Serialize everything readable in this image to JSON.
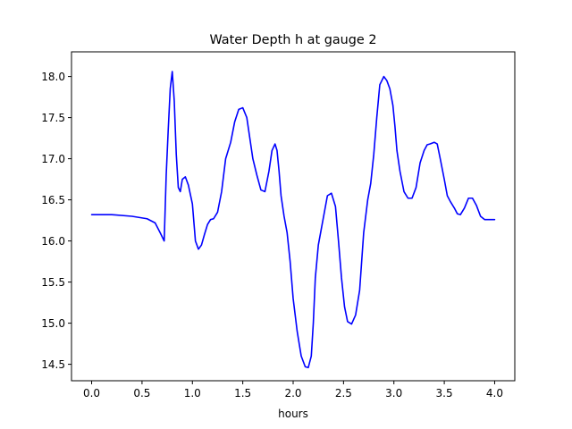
{
  "chart_data": {
    "type": "line",
    "title": "Water Depth h at gauge 2",
    "xlabel": "hours",
    "ylabel": "",
    "xlim": [
      -0.2,
      4.2
    ],
    "ylim": [
      14.3,
      18.3
    ],
    "xticks": [
      0.0,
      0.5,
      1.0,
      1.5,
      2.0,
      2.5,
      3.0,
      3.5,
      4.0
    ],
    "xtick_labels": [
      "0.0",
      "0.5",
      "1.0",
      "1.5",
      "2.0",
      "2.5",
      "3.0",
      "3.5",
      "4.0"
    ],
    "yticks": [
      14.5,
      15.0,
      15.5,
      16.0,
      16.5,
      17.0,
      17.5,
      18.0
    ],
    "ytick_labels": [
      "14.5",
      "15.0",
      "15.5",
      "16.0",
      "16.5",
      "17.0",
      "17.5",
      "18.0"
    ],
    "grid": false,
    "line_color": "#0000ff",
    "series": [
      {
        "x": [
          0.0,
          0.2,
          0.4,
          0.55,
          0.63,
          0.68,
          0.72,
          0.74,
          0.76,
          0.78,
          0.8,
          0.82,
          0.84,
          0.86,
          0.88,
          0.9,
          0.93,
          0.96,
          1.0,
          1.03,
          1.06,
          1.09,
          1.12,
          1.15,
          1.18,
          1.21,
          1.25,
          1.29,
          1.33,
          1.38,
          1.42,
          1.46,
          1.5,
          1.54,
          1.57,
          1.6,
          1.64,
          1.68,
          1.72,
          1.76,
          1.79,
          1.82,
          1.84,
          1.86,
          1.88,
          1.91,
          1.94,
          1.97,
          2.0,
          2.04,
          2.08,
          2.12,
          2.15,
          2.18,
          2.2,
          2.22,
          2.25,
          2.28,
          2.31,
          2.34,
          2.38,
          2.42,
          2.45,
          2.48,
          2.51,
          2.54,
          2.58,
          2.62,
          2.66,
          2.7,
          2.74,
          2.77,
          2.8,
          2.83,
          2.86,
          2.9,
          2.93,
          2.96,
          2.99,
          3.01,
          3.03,
          3.06,
          3.1,
          3.14,
          3.18,
          3.22,
          3.26,
          3.3,
          3.33,
          3.36,
          3.4,
          3.43,
          3.46,
          3.5,
          3.53,
          3.56,
          3.6,
          3.63,
          3.66,
          3.7,
          3.74,
          3.78,
          3.82,
          3.86,
          3.9,
          3.93,
          3.96,
          4.0
        ],
        "y": [
          16.32,
          16.32,
          16.3,
          16.27,
          16.22,
          16.1,
          16.0,
          16.8,
          17.35,
          17.85,
          18.06,
          17.7,
          17.05,
          16.65,
          16.6,
          16.75,
          16.78,
          16.68,
          16.45,
          16.0,
          15.9,
          15.95,
          16.08,
          16.2,
          16.26,
          16.27,
          16.35,
          16.6,
          17.0,
          17.2,
          17.45,
          17.6,
          17.62,
          17.5,
          17.25,
          17.0,
          16.8,
          16.62,
          16.6,
          16.85,
          17.1,
          17.18,
          17.1,
          16.85,
          16.55,
          16.3,
          16.1,
          15.75,
          15.3,
          14.9,
          14.6,
          14.47,
          14.46,
          14.6,
          15.0,
          15.55,
          15.95,
          16.15,
          16.35,
          16.55,
          16.58,
          16.42,
          16.0,
          15.55,
          15.2,
          15.02,
          14.99,
          15.1,
          15.4,
          16.1,
          16.5,
          16.7,
          17.05,
          17.5,
          17.9,
          18.0,
          17.95,
          17.85,
          17.65,
          17.4,
          17.1,
          16.85,
          16.6,
          16.52,
          16.52,
          16.65,
          16.95,
          17.1,
          17.17,
          17.18,
          17.2,
          17.18,
          17.0,
          16.75,
          16.55,
          16.48,
          16.4,
          16.33,
          16.32,
          16.4,
          16.52,
          16.52,
          16.43,
          16.3,
          16.26,
          16.26,
          16.26,
          16.26
        ]
      }
    ]
  }
}
